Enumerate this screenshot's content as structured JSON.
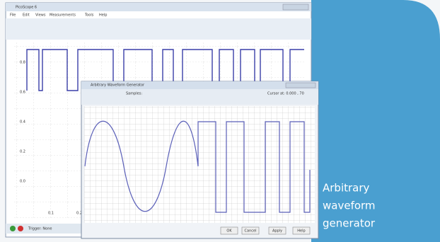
{
  "scope": {
    "title": "PicoScope 6",
    "menu": [
      "File",
      "Edit",
      "Views",
      "Measurements",
      "Tools",
      "Help"
    ],
    "y_labels": [
      "0.8",
      "0.6",
      "0.4",
      "0.2",
      "0.0"
    ],
    "x_labels": [
      "0.1",
      "0.2"
    ],
    "trigger": "Trigger: None"
  },
  "awg": {
    "title": "Arbitrary Waveform Generator",
    "samples_label": "Samples:",
    "cursor": "Cursor at: 0.000 , 70",
    "buttons": [
      "OK",
      "Cancel",
      "Apply",
      "Help"
    ]
  },
  "caption": {
    "lines": [
      "Arbitrary",
      "waveform",
      "generator"
    ]
  }
}
